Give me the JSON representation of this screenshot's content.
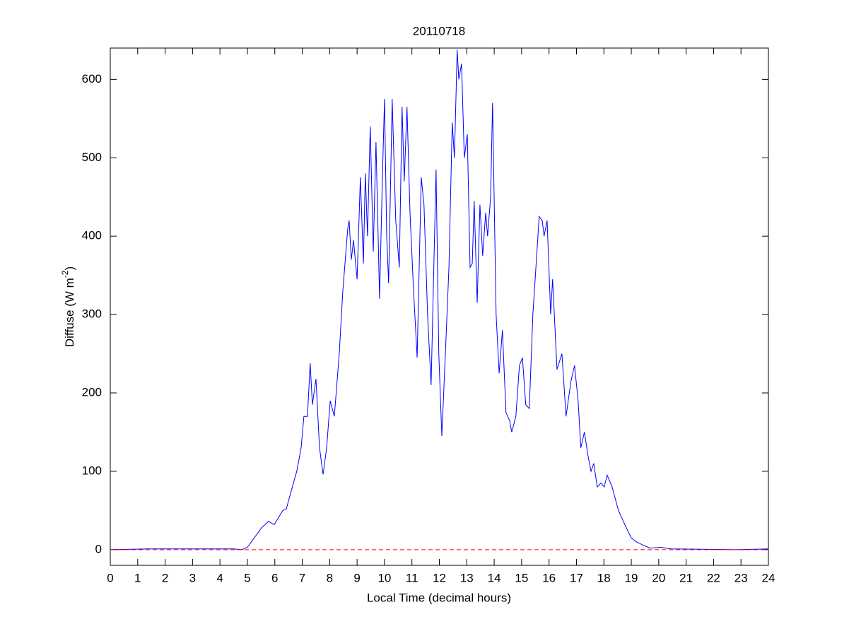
{
  "chart_data": {
    "type": "line",
    "title": "20110718",
    "xlabel": "Local Time (decimal hours)",
    "ylabel": {
      "text": "Diffuse (W m",
      "superscript": "-2",
      "suffix": ")"
    },
    "xlim": [
      0,
      24
    ],
    "xticks": [
      0,
      1,
      2,
      3,
      4,
      5,
      6,
      7,
      8,
      9,
      10,
      11,
      12,
      13,
      14,
      15,
      16,
      17,
      18,
      19,
      20,
      21,
      22,
      23,
      24
    ],
    "ylim": [
      -20,
      640
    ],
    "yticks": [
      0,
      100,
      200,
      300,
      400,
      500,
      600
    ],
    "grid": false,
    "reference_line": {
      "value": 0,
      "color": "#ff0000",
      "style": "dashed"
    },
    "series": [
      {
        "color": "#0000ff",
        "x": [
          0,
          1.4,
          4.5,
          4.8,
          5.0,
          5.52,
          5.77,
          5.98,
          6.29,
          6.42,
          6.6,
          6.8,
          6.96,
          7.06,
          7.19,
          7.29,
          7.37,
          7.5,
          7.63,
          7.76,
          7.89,
          8.02,
          8.17,
          8.35,
          8.48,
          8.66,
          8.71,
          8.79,
          8.87,
          9.0,
          9.12,
          9.23,
          9.3,
          9.38,
          9.48,
          9.59,
          9.69,
          9.82,
          9.92,
          10.0,
          10.08,
          10.15,
          10.28,
          10.41,
          10.54,
          10.64,
          10.72,
          10.82,
          10.93,
          11.06,
          11.19,
          11.34,
          11.44,
          11.57,
          11.7,
          11.88,
          11.98,
          12.09,
          12.22,
          12.35,
          12.47,
          12.55,
          12.65,
          12.71,
          12.81,
          12.91,
          13.02,
          13.12,
          13.2,
          13.27,
          13.38,
          13.48,
          13.58,
          13.69,
          13.76,
          13.87,
          13.94,
          14.07,
          14.18,
          14.3,
          14.43,
          14.56,
          14.64,
          14.79,
          14.92,
          15.03,
          15.15,
          15.28,
          15.41,
          15.54,
          15.64,
          15.75,
          15.82,
          15.93,
          16.06,
          16.13,
          16.29,
          16.47,
          16.62,
          16.8,
          16.93,
          17.06,
          17.16,
          17.29,
          17.42,
          17.53,
          17.63,
          17.76,
          17.89,
          18.01,
          18.12,
          18.3,
          18.53,
          18.79,
          19.0,
          19.18,
          19.48,
          19.69,
          20.08,
          20.46,
          22.78,
          24
        ],
        "values": [
          0,
          1,
          1,
          0,
          3,
          28,
          36,
          32,
          50,
          52,
          75,
          100,
          130,
          170,
          170,
          238,
          185,
          218,
          130,
          96,
          130,
          190,
          170,
          250,
          330,
          410,
          420,
          370,
          395,
          345,
          475,
          365,
          480,
          400,
          540,
          380,
          520,
          320,
          470,
          575,
          400,
          340,
          575,
          420,
          360,
          565,
          470,
          565,
          430,
          330,
          245,
          475,
          440,
          300,
          210,
          485,
          250,
          145,
          250,
          360,
          545,
          500,
          638,
          600,
          620,
          500,
          530,
          360,
          365,
          445,
          315,
          440,
          375,
          430,
          400,
          450,
          570,
          300,
          225,
          280,
          175,
          165,
          150,
          170,
          235,
          245,
          185,
          180,
          300,
          370,
          425,
          420,
          400,
          420,
          300,
          345,
          230,
          250,
          170,
          215,
          235,
          190,
          130,
          150,
          120,
          100,
          110,
          80,
          85,
          80,
          95,
          80,
          50,
          30,
          15,
          10,
          5,
          2,
          3,
          1,
          0,
          1
        ]
      }
    ]
  }
}
